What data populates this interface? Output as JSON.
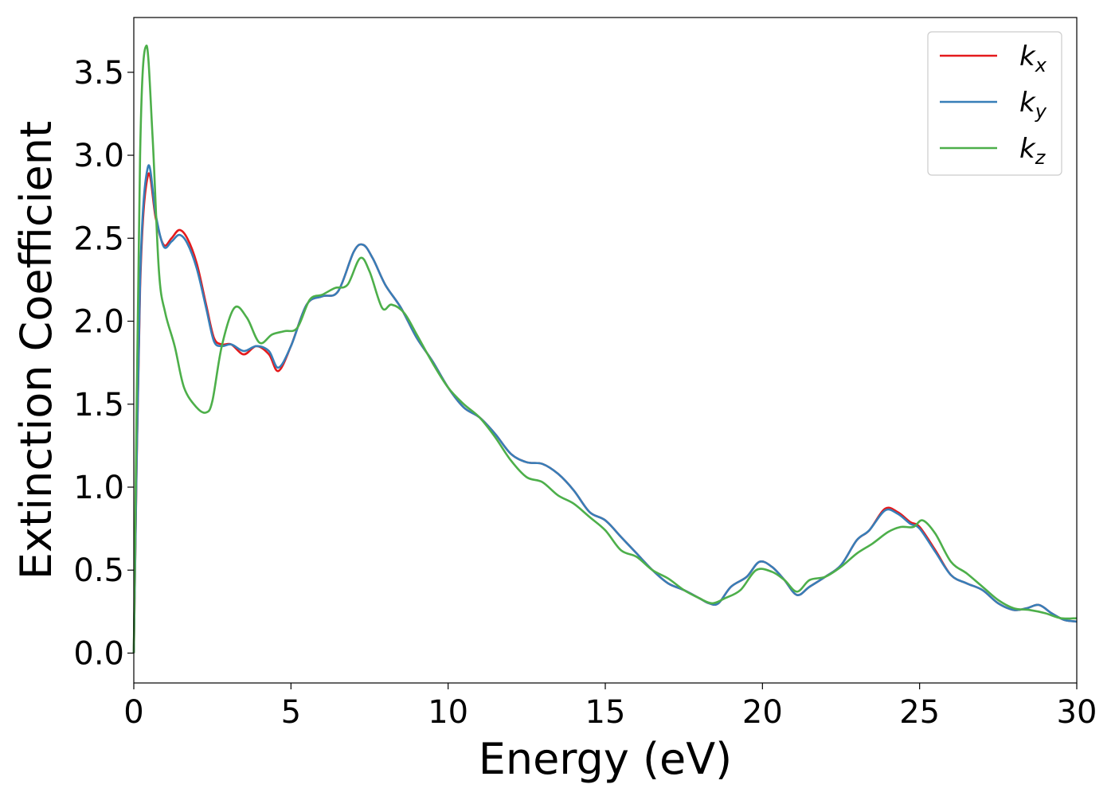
{
  "chart_data": {
    "type": "line",
    "xlabel": "Energy (eV)",
    "ylabel": "Extinction Coefficient",
    "xlim": [
      0,
      30
    ],
    "ylim": [
      -0.18,
      3.83
    ],
    "xticks": [
      0,
      5,
      10,
      15,
      20,
      25,
      30
    ],
    "xtick_labels": [
      "0",
      "5",
      "10",
      "15",
      "20",
      "25",
      "30"
    ],
    "yticks": [
      0.0,
      0.5,
      1.0,
      1.5,
      2.0,
      2.5,
      3.0,
      3.5
    ],
    "ytick_labels": [
      "0.0",
      "0.5",
      "1.0",
      "1.5",
      "2.0",
      "2.5",
      "3.0",
      "3.5"
    ],
    "grid": false,
    "legend_position": "top-right",
    "series": [
      {
        "name": "k",
        "subscript": "x",
        "color": "#e41a1c",
        "x": [
          0,
          0.2,
          0.45,
          0.7,
          0.95,
          1.2,
          1.45,
          1.7,
          2.0,
          2.3,
          2.55,
          2.8,
          3.1,
          3.5,
          3.9,
          4.3,
          4.6,
          5.0,
          5.5,
          6.0,
          6.5,
          7.0,
          7.3,
          7.6,
          8.0,
          8.5,
          9.0,
          9.5,
          10.0,
          10.5,
          11.0,
          11.5,
          12.0,
          12.5,
          13.0,
          13.5,
          14.0,
          14.5,
          15.0,
          15.5,
          16.0,
          16.5,
          17.0,
          17.5,
          18.0,
          18.3,
          18.6,
          19.0,
          19.5,
          19.9,
          20.3,
          20.7,
          21.1,
          21.5,
          22.0,
          22.5,
          23.0,
          23.4,
          23.9,
          24.3,
          24.7,
          25.0,
          25.5,
          26.0,
          26.5,
          27.0,
          27.5,
          28.0,
          28.4,
          28.8,
          29.2,
          29.6,
          30.0
        ],
        "y": [
          0.0,
          2.2,
          2.88,
          2.62,
          2.46,
          2.5,
          2.55,
          2.5,
          2.35,
          2.1,
          1.9,
          1.86,
          1.86,
          1.8,
          1.85,
          1.8,
          1.7,
          1.85,
          2.1,
          2.15,
          2.18,
          2.42,
          2.46,
          2.38,
          2.22,
          2.08,
          1.9,
          1.76,
          1.6,
          1.48,
          1.42,
          1.32,
          1.2,
          1.15,
          1.14,
          1.08,
          0.98,
          0.85,
          0.8,
          0.7,
          0.6,
          0.5,
          0.42,
          0.38,
          0.33,
          0.3,
          0.3,
          0.4,
          0.46,
          0.55,
          0.52,
          0.44,
          0.35,
          0.4,
          0.46,
          0.53,
          0.68,
          0.74,
          0.87,
          0.85,
          0.79,
          0.76,
          0.62,
          0.47,
          0.42,
          0.38,
          0.3,
          0.26,
          0.27,
          0.29,
          0.24,
          0.2,
          0.19
        ]
      },
      {
        "name": "k",
        "subscript": "y",
        "color": "#377eb8",
        "x": [
          0,
          0.2,
          0.45,
          0.7,
          0.95,
          1.2,
          1.45,
          1.7,
          2.0,
          2.3,
          2.55,
          2.8,
          3.1,
          3.5,
          3.9,
          4.3,
          4.6,
          5.0,
          5.5,
          6.0,
          6.5,
          7.0,
          7.3,
          7.6,
          8.0,
          8.5,
          9.0,
          9.5,
          10.0,
          10.5,
          11.0,
          11.5,
          12.0,
          12.5,
          13.0,
          13.5,
          14.0,
          14.5,
          15.0,
          15.5,
          16.0,
          16.5,
          17.0,
          17.5,
          18.0,
          18.3,
          18.6,
          19.0,
          19.5,
          19.9,
          20.3,
          20.7,
          21.1,
          21.5,
          22.0,
          22.5,
          23.0,
          23.4,
          23.9,
          24.3,
          24.7,
          25.0,
          25.5,
          26.0,
          26.5,
          27.0,
          27.5,
          28.0,
          28.4,
          28.8,
          29.2,
          29.6,
          30.0
        ],
        "y": [
          0.0,
          2.25,
          2.93,
          2.64,
          2.45,
          2.48,
          2.52,
          2.47,
          2.32,
          2.08,
          1.88,
          1.85,
          1.86,
          1.82,
          1.85,
          1.82,
          1.72,
          1.85,
          2.1,
          2.15,
          2.18,
          2.42,
          2.46,
          2.38,
          2.22,
          2.08,
          1.9,
          1.76,
          1.6,
          1.48,
          1.42,
          1.32,
          1.2,
          1.15,
          1.14,
          1.08,
          0.98,
          0.85,
          0.8,
          0.7,
          0.6,
          0.5,
          0.42,
          0.38,
          0.33,
          0.3,
          0.3,
          0.4,
          0.46,
          0.55,
          0.52,
          0.44,
          0.35,
          0.4,
          0.46,
          0.53,
          0.68,
          0.74,
          0.86,
          0.84,
          0.78,
          0.75,
          0.61,
          0.47,
          0.42,
          0.38,
          0.3,
          0.26,
          0.27,
          0.29,
          0.24,
          0.2,
          0.19
        ]
      },
      {
        "name": "k",
        "subscript": "z",
        "color": "#4daf4a",
        "x": [
          0,
          0.2,
          0.4,
          0.6,
          0.8,
          1.0,
          1.3,
          1.6,
          2.0,
          2.3,
          2.5,
          2.8,
          3.2,
          3.6,
          4.0,
          4.4,
          4.8,
          5.2,
          5.6,
          6.0,
          6.4,
          6.8,
          7.2,
          7.5,
          7.9,
          8.2,
          8.6,
          9.0,
          9.5,
          10.0,
          10.5,
          11.0,
          11.5,
          12.0,
          12.5,
          13.0,
          13.5,
          14.0,
          14.5,
          15.0,
          15.5,
          16.0,
          16.5,
          17.0,
          17.5,
          18.0,
          18.4,
          18.8,
          19.3,
          19.8,
          20.3,
          20.7,
          21.1,
          21.5,
          22.0,
          22.5,
          23.0,
          23.5,
          24.0,
          24.4,
          24.8,
          25.1,
          25.5,
          26.0,
          26.5,
          27.0,
          27.5,
          28.0,
          28.5,
          29.0,
          29.5,
          30.0
        ],
        "y": [
          0.0,
          3.0,
          3.66,
          3.1,
          2.3,
          2.05,
          1.85,
          1.6,
          1.48,
          1.45,
          1.52,
          1.85,
          2.08,
          2.02,
          1.87,
          1.92,
          1.94,
          1.96,
          2.13,
          2.16,
          2.2,
          2.22,
          2.38,
          2.3,
          2.08,
          2.1,
          2.05,
          1.92,
          1.75,
          1.6,
          1.5,
          1.42,
          1.3,
          1.16,
          1.06,
          1.03,
          0.95,
          0.9,
          0.82,
          0.74,
          0.62,
          0.58,
          0.5,
          0.45,
          0.38,
          0.33,
          0.3,
          0.33,
          0.38,
          0.5,
          0.49,
          0.44,
          0.37,
          0.44,
          0.46,
          0.52,
          0.6,
          0.66,
          0.73,
          0.76,
          0.76,
          0.8,
          0.72,
          0.55,
          0.48,
          0.4,
          0.32,
          0.27,
          0.26,
          0.24,
          0.21,
          0.21
        ]
      }
    ]
  }
}
